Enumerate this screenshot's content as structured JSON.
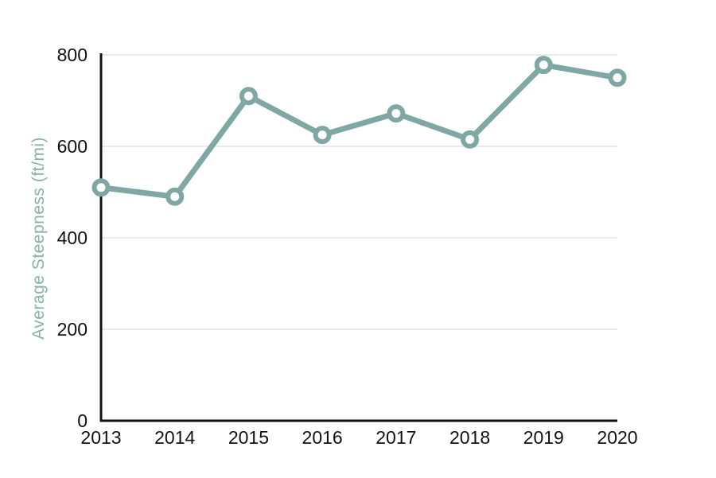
{
  "chart_data": {
    "type": "line",
    "x": [
      "2013",
      "2014",
      "2015",
      "2016",
      "2017",
      "2018",
      "2019",
      "2020"
    ],
    "values": [
      510,
      490,
      710,
      625,
      672,
      615,
      778,
      750
    ],
    "xlabel": "",
    "ylabel": "Average Steepness (ft/mi)",
    "ylim": [
      0,
      800
    ],
    "yticks": [
      0,
      200,
      400,
      600,
      800
    ],
    "grid": "horizontal-only",
    "legend": "none",
    "marker_style": "open-circle",
    "colors": {
      "line": "#7FA8A4",
      "marker_fill": "#FFFFFF",
      "ylabel_text": "#87B1AD",
      "tick_text": "#111111",
      "axis": "#111111",
      "gridline": "#E4E4E4",
      "background": "#FFFFFF"
    }
  }
}
